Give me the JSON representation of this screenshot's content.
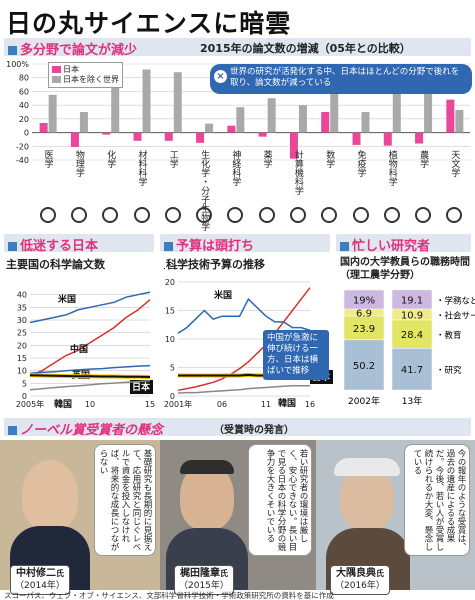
{
  "page_title": "日の丸サイエンスに暗雲",
  "section1": {
    "title": "多分野で論文が減少",
    "chart_title": "2015年の論文数の増減（05年との比較）",
    "note": "世界の研究が活発化する中、日本はほとんどの分野で後れを取り、論文数が減っている"
  },
  "colors": {
    "japan": "#e8479a",
    "world": "#a9a9a9",
    "accent": "#e0317a",
    "blue": "#2f67b3",
    "red": "#d9302c"
  },
  "icons": [
    "microscope-icon",
    "magnet-icon",
    "flask-icon",
    "molecule-icon",
    "gear-icon",
    "dna-icon",
    "brain-icon",
    "pill-icon",
    "laptop-icon",
    "pi-icon",
    "virus-icon",
    "leaf-icon",
    "tractor-icon",
    "telescope-icon"
  ],
  "section2": {
    "title": "低迷する日本",
    "chart_title": "主要国の科学論文数",
    "unit": "（万本）"
  },
  "section3": {
    "title": "予算は頭打ち",
    "chart_title": "科学技術予算の推移",
    "unit": "（兆円）",
    "callout": "中国が急激に伸び続ける一方、日本は横ばいで推移"
  },
  "section4": {
    "title": "忙しい研究者",
    "chart_title": "国内の大学教員らの職務時間（理工農学分野）"
  },
  "section5": {
    "title": "ノーベル賞受賞者の懸念",
    "subtitle": "（受賞時の発言）"
  },
  "laureates": [
    {
      "name": "中村修二",
      "suffix": "氏",
      "year": "（2014年）",
      "quote": "基礎研究も長期的に見据えて、応用研究と同じぐレベルで資金を投入しなければ、将来的な成長につながらない"
    },
    {
      "name": "梶田隆章",
      "suffix": "氏",
      "year": "（2015年）",
      "quote": "若い研究者の環境は厳しく、安心できない。長い目で見る日本の科学分野の競争力を大きくそいでいる"
    },
    {
      "name": "大隅良典",
      "suffix": "氏",
      "year": "（2016年）",
      "quote": "今の報年のような受賞は、過去の遺産によるる成果だ。今後、若い人が受賞し続けられるか大変、懸念している"
    }
  ],
  "source": "スコーパス、ウェブ・オブ・サイエンス、文部科学省科学技術・学術政策研究所の資料を基に作成",
  "chart_data": [
    {
      "type": "bar",
      "title": "2015年の論文数の増減（05年との比較）",
      "categories": [
        "医学",
        "物理学",
        "化学",
        "材料科学",
        "工学",
        "生化学・分子生物学",
        "神経科学",
        "薬学",
        "計算機科学",
        "数学",
        "免疫学",
        "植物科学",
        "農学",
        "天文学"
      ],
      "series": [
        {
          "name": "日本",
          "values": [
            14,
            -21,
            -3,
            -12,
            -12,
            -15,
            10,
            -6,
            -38,
            30,
            -18,
            -19,
            -16,
            48
          ]
        },
        {
          "name": "日本を除く世界",
          "values": [
            55,
            30,
            65,
            92,
            88,
            13,
            37,
            50,
            40,
            82,
            30,
            72,
            84,
            33
          ]
        }
      ],
      "ylim": [
        -40,
        100
      ],
      "yticks": [
        "100",
        "80",
        "60",
        "40",
        "20",
        "0",
        "-20",
        "-40"
      ],
      "ytick_unit": "%"
    },
    {
      "type": "line",
      "title": "主要国の科学論文数",
      "x": [
        2005,
        2006,
        2007,
        2008,
        2009,
        2010,
        2011,
        2012,
        2013,
        2014,
        2015
      ],
      "xticks": [
        "2005年",
        "10",
        "15"
      ],
      "yticks": [
        "40",
        "35",
        "30",
        "25",
        "20",
        "15",
        "10",
        "5",
        "0"
      ],
      "ylim": [
        0,
        45
      ],
      "series": [
        {
          "name": "米国",
          "values": [
            29,
            30,
            31,
            32,
            34,
            35,
            36,
            37,
            39,
            40,
            41
          ]
        },
        {
          "name": "中国",
          "values": [
            8,
            10,
            13,
            16,
            18,
            21,
            24,
            27,
            31,
            34,
            38
          ]
        },
        {
          "name": "英国",
          "values": [
            9,
            9.3,
            9.6,
            10,
            10.3,
            10.6,
            10.8,
            11.2,
            11.5,
            11.8,
            12
          ]
        },
        {
          "name": "日本",
          "values": [
            8.2,
            8.1,
            8.0,
            7.9,
            7.8,
            7.8,
            7.7,
            7.7,
            7.6,
            7.6,
            7.5
          ]
        },
        {
          "name": "韓国",
          "values": [
            2.5,
            2.9,
            3.3,
            3.7,
            4.0,
            4.4,
            4.8,
            5.1,
            5.4,
            5.7,
            6.0
          ]
        }
      ]
    },
    {
      "type": "line",
      "title": "科学技術予算の推移",
      "x": [
        2001,
        2002,
        2003,
        2004,
        2005,
        2006,
        2007,
        2008,
        2009,
        2010,
        2011,
        2012,
        2013,
        2014,
        2015,
        2016
      ],
      "xticks": [
        "2001年",
        "06",
        "11",
        "16"
      ],
      "yticks": [
        "20",
        "15",
        "10",
        "5",
        "0"
      ],
      "ylim": [
        0,
        20
      ],
      "series": [
        {
          "name": "米国",
          "values": [
            11,
            12,
            13.5,
            15,
            13.5,
            14,
            14,
            14,
            17,
            15.5,
            14,
            13,
            13,
            12,
            12,
            11.5
          ]
        },
        {
          "name": "中国",
          "values": [
            1,
            1.3,
            1.6,
            2,
            2.4,
            3,
            3.8,
            4.8,
            6,
            7.5,
            9,
            11,
            13,
            15,
            17,
            19
          ]
        },
        {
          "name": "日本",
          "values": [
            3.6,
            3.6,
            3.6,
            3.6,
            3.6,
            3.6,
            3.6,
            3.6,
            3.7,
            3.6,
            3.6,
            3.6,
            3.6,
            3.6,
            3.6,
            3.6
          ]
        },
        {
          "name": "韓国",
          "values": [
            0.5,
            0.6,
            0.6,
            0.7,
            0.8,
            0.9,
            1.0,
            1.1,
            1.3,
            1.4,
            1.5,
            1.6,
            1.7,
            1.8,
            1.8,
            1.8
          ]
        }
      ]
    },
    {
      "type": "bar",
      "title": "国内の大学教員らの職務時間（理工農学分野）",
      "categories": [
        "2002年",
        "13年"
      ],
      "series": [
        {
          "name": "研究",
          "values": [
            50.2,
            41.7
          ]
        },
        {
          "name": "教育",
          "values": [
            23.9,
            28.4
          ]
        },
        {
          "name": "社会サービス",
          "values": [
            6.9,
            10.9
          ]
        },
        {
          "name": "学務など",
          "values": [
            19,
            19.1
          ]
        }
      ],
      "labels": [
        [
          "50.2",
          "23.9",
          "6.9",
          "19%"
        ],
        [
          "41.7",
          "28.4",
          "10.9",
          "19.1"
        ]
      ]
    }
  ]
}
